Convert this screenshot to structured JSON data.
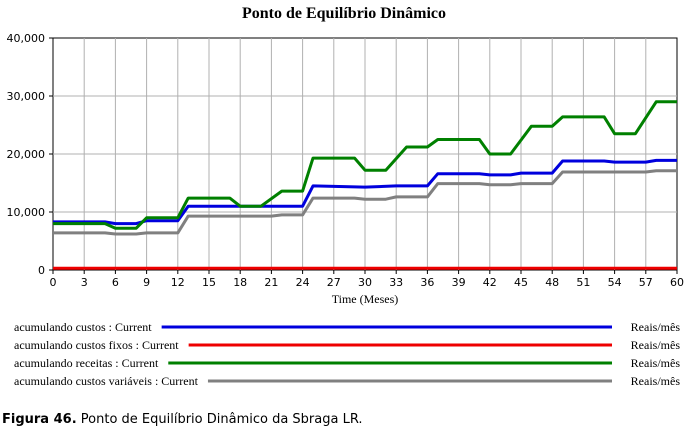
{
  "chart_data": {
    "type": "line",
    "title": "Ponto de Equilíbrio Dinâmico",
    "xlabel": "Time (Meses)",
    "ylabel": "",
    "xlim": [
      0,
      60
    ],
    "ylim": [
      0,
      40000
    ],
    "x_ticks": [
      "0",
      "3",
      "6",
      "9",
      "12",
      "15",
      "18",
      "21",
      "24",
      "27",
      "30",
      "33",
      "36",
      "39",
      "42",
      "45",
      "48",
      "51",
      "54",
      "57",
      "60"
    ],
    "y_ticks": [
      "40,000",
      "30,000",
      "20,000",
      "10,000",
      "0"
    ],
    "y_tick_values": [
      40000,
      30000,
      20000,
      10000,
      0
    ],
    "grid": true,
    "legend_position": "bottom",
    "series": [
      {
        "name": "acumulando custos : Current",
        "unit": "Reais/mês",
        "color": "#0000dd",
        "points": [
          [
            0,
            8300
          ],
          [
            5,
            8300
          ],
          [
            6,
            8000
          ],
          [
            8,
            8000
          ],
          [
            9,
            8500
          ],
          [
            12,
            8500
          ],
          [
            13,
            11000
          ],
          [
            24,
            11000
          ],
          [
            25,
            14500
          ],
          [
            30,
            14300
          ],
          [
            33,
            14500
          ],
          [
            36,
            14500
          ],
          [
            37,
            16600
          ],
          [
            41,
            16600
          ],
          [
            42,
            16400
          ],
          [
            44,
            16400
          ],
          [
            45,
            16700
          ],
          [
            48,
            16700
          ],
          [
            49,
            18800
          ],
          [
            53,
            18800
          ],
          [
            54,
            18600
          ],
          [
            57,
            18600
          ],
          [
            58,
            18900
          ],
          [
            60,
            18900
          ]
        ]
      },
      {
        "name": "acumulando custos fixos : Current",
        "unit": "Reais/mês",
        "color": "#ee0000",
        "points": [
          [
            0,
            300
          ],
          [
            60,
            300
          ]
        ]
      },
      {
        "name": "acumulando receitas : Current",
        "unit": "Reais/mês",
        "color": "#008000",
        "points": [
          [
            0,
            8000
          ],
          [
            5,
            8000
          ],
          [
            6,
            7200
          ],
          [
            8,
            7200
          ],
          [
            9,
            9000
          ],
          [
            12,
            9000
          ],
          [
            13,
            12400
          ],
          [
            17,
            12400
          ],
          [
            18,
            11000
          ],
          [
            20,
            11000
          ],
          [
            22,
            13600
          ],
          [
            24,
            13600
          ],
          [
            25,
            19300
          ],
          [
            29,
            19300
          ],
          [
            30,
            17200
          ],
          [
            32,
            17200
          ],
          [
            34,
            21200
          ],
          [
            36,
            21200
          ],
          [
            37,
            22500
          ],
          [
            41,
            22500
          ],
          [
            42,
            20000
          ],
          [
            44,
            20000
          ],
          [
            46,
            24800
          ],
          [
            48,
            24800
          ],
          [
            49,
            26400
          ],
          [
            53,
            26400
          ],
          [
            54,
            23500
          ],
          [
            56,
            23500
          ],
          [
            58,
            29000
          ],
          [
            60,
            29000
          ]
        ]
      },
      {
        "name": "acumulando custos variáveis : Current",
        "unit": "Reais/mês",
        "color": "#808080",
        "points": [
          [
            0,
            6400
          ],
          [
            5,
            6400
          ],
          [
            6,
            6200
          ],
          [
            8,
            6200
          ],
          [
            9,
            6400
          ],
          [
            12,
            6400
          ],
          [
            13,
            9300
          ],
          [
            21,
            9300
          ],
          [
            22,
            9500
          ],
          [
            24,
            9500
          ],
          [
            25,
            12400
          ],
          [
            29,
            12400
          ],
          [
            30,
            12200
          ],
          [
            32,
            12200
          ],
          [
            33,
            12600
          ],
          [
            36,
            12600
          ],
          [
            37,
            14900
          ],
          [
            41,
            14900
          ],
          [
            42,
            14700
          ],
          [
            44,
            14700
          ],
          [
            45,
            14900
          ],
          [
            48,
            14900
          ],
          [
            49,
            16900
          ],
          [
            57,
            16900
          ],
          [
            58,
            17100
          ],
          [
            60,
            17100
          ]
        ]
      }
    ]
  },
  "caption": {
    "label": "Figura 46.",
    "text": " Ponto de Equilíbrio Dinâmico da Sbraga LR."
  }
}
